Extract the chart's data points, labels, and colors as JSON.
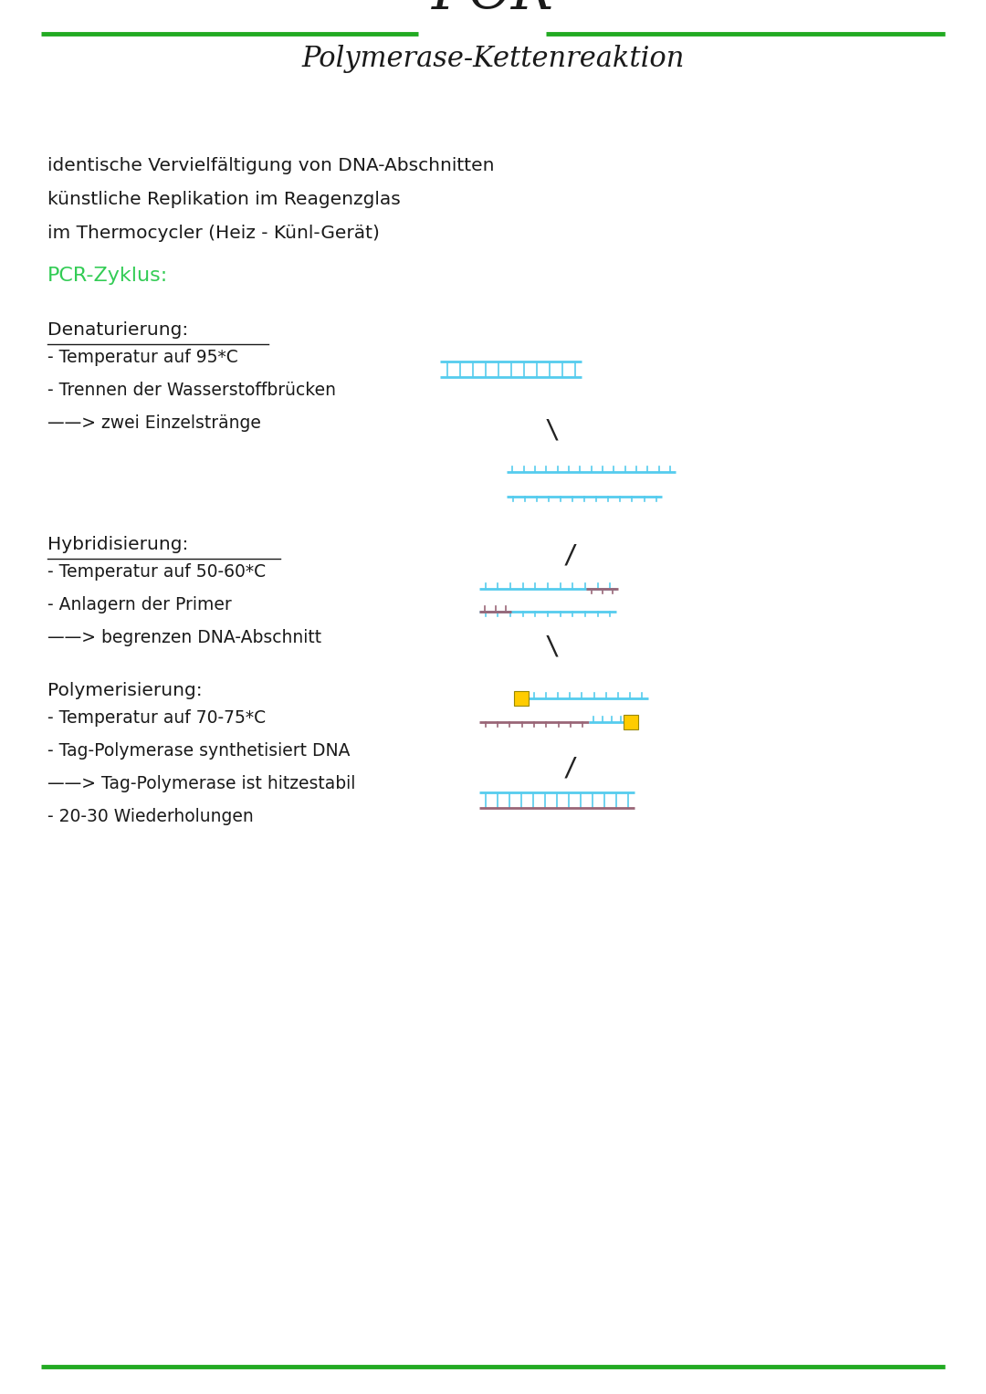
{
  "title_main": "PCR",
  "title_sub": "Polymerase-Kettenreaktion",
  "bg_color": "#ffffff",
  "green_line_color": "#22aa22",
  "text_color": "#1a1a1a",
  "green_text_color": "#33cc55",
  "intro_lines": [
    "identische Vervielfältigung von DNA-Abschnitten",
    "künstliche Replikation im Reagenzglas",
    "im Thermocycler (Heiz - Künl-Gerät)"
  ],
  "section_title": "PCR-Zyklus:",
  "dna_cyan": "#55ccee",
  "dna_purple": "#996677",
  "dna_yellow": "#ffcc00",
  "arrow_color": "#222222",
  "page_width": 10.8,
  "page_height": 15.27
}
